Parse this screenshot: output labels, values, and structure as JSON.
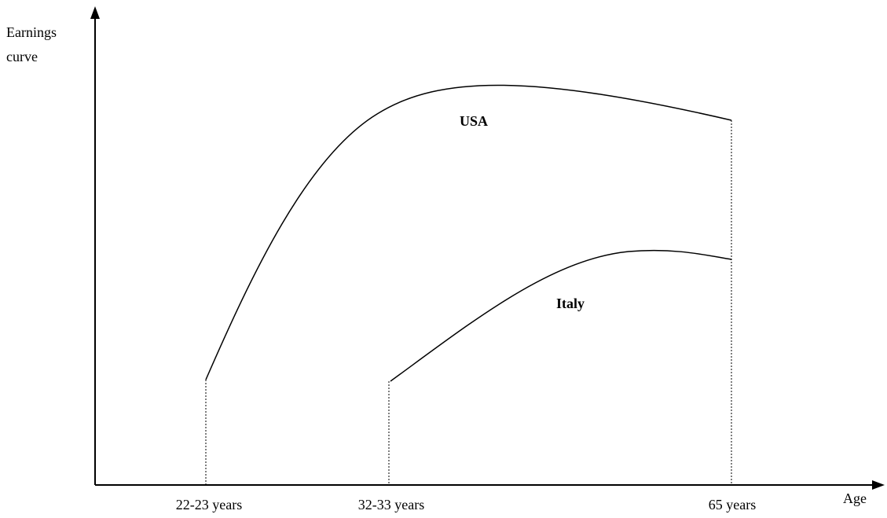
{
  "axes": {
    "y_label": [
      "Earnings",
      "curve"
    ],
    "x_label": "Age"
  },
  "ticks": [
    "22-23 years",
    "32-33 years",
    "65 years"
  ],
  "curves": [
    {
      "label": "USA"
    },
    {
      "label": "Italy"
    }
  ]
}
